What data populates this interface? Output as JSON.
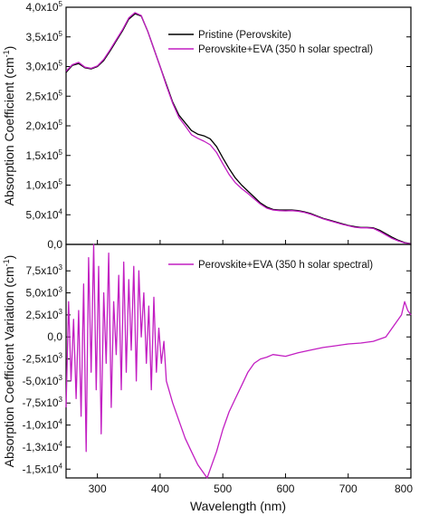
{
  "chart_data": [
    {
      "type": "line",
      "ylabel": "Absorption Coefficient (cm",
      "ylabel_sup": "-1",
      "ylabel_tail": ")",
      "xlim": [
        250,
        800
      ],
      "ylim": [
        0,
        400000
      ],
      "yticks": [
        {
          "value": 0,
          "label": "0,0"
        },
        {
          "value": 50000,
          "label": "5,0x10",
          "exp": "4"
        },
        {
          "value": 100000,
          "label": "1,0x10",
          "exp": "5"
        },
        {
          "value": 150000,
          "label": "1,5x10",
          "exp": "5"
        },
        {
          "value": 200000,
          "label": "2,0x10",
          "exp": "5"
        },
        {
          "value": 250000,
          "label": "2,5x10",
          "exp": "5"
        },
        {
          "value": 300000,
          "label": "3,0x10",
          "exp": "5"
        },
        {
          "value": 350000,
          "label": "3,5x10",
          "exp": "5"
        },
        {
          "value": 400000,
          "label": "4,0x10",
          "exp": "5"
        }
      ],
      "legend_position": "top-right",
      "series": [
        {
          "name": "Pristine (Perovskite)",
          "color": "#000000",
          "x": [
            250,
            260,
            270,
            280,
            290,
            300,
            310,
            320,
            330,
            340,
            350,
            360,
            370,
            380,
            390,
            400,
            410,
            420,
            430,
            440,
            450,
            460,
            470,
            480,
            490,
            500,
            510,
            520,
            530,
            540,
            550,
            560,
            570,
            580,
            590,
            600,
            610,
            620,
            630,
            640,
            650,
            660,
            670,
            680,
            690,
            700,
            710,
            720,
            730,
            740,
            750,
            760,
            770,
            780,
            790,
            800
          ],
          "y": [
            290000,
            302000,
            305000,
            298000,
            296000,
            300000,
            310000,
            326000,
            343000,
            360000,
            380000,
            389000,
            385000,
            360000,
            330000,
            300000,
            270000,
            240000,
            218000,
            205000,
            192000,
            186000,
            183000,
            178000,
            165000,
            146000,
            128000,
            112000,
            100000,
            90000,
            80000,
            70000,
            63000,
            59000,
            58000,
            58000,
            58000,
            57000,
            55000,
            52000,
            48000,
            44000,
            41000,
            38000,
            35000,
            32000,
            30000,
            28500,
            28500,
            28000,
            24000,
            18000,
            12000,
            7000,
            3000,
            1000
          ]
        },
        {
          "name": "Perovskite+EVA (350 h solar spectral)",
          "color": "#c21ec2",
          "x": [
            250,
            260,
            270,
            280,
            290,
            300,
            310,
            320,
            330,
            340,
            350,
            360,
            370,
            380,
            390,
            400,
            410,
            420,
            430,
            440,
            450,
            460,
            470,
            480,
            490,
            500,
            510,
            520,
            530,
            540,
            550,
            560,
            570,
            580,
            590,
            600,
            610,
            620,
            630,
            640,
            650,
            660,
            670,
            680,
            690,
            700,
            710,
            720,
            730,
            740,
            750,
            760,
            770,
            780,
            790,
            800
          ],
          "y": [
            292000,
            303000,
            307000,
            299000,
            297000,
            301000,
            312000,
            328000,
            345000,
            362000,
            382000,
            391000,
            386000,
            360000,
            330000,
            300000,
            268000,
            238000,
            214000,
            200000,
            185000,
            179000,
            174000,
            168000,
            155000,
            136000,
            118000,
            104000,
            94000,
            86000,
            77000,
            68000,
            61000,
            58000,
            57000,
            56500,
            57000,
            56000,
            54000,
            51000,
            47000,
            43000,
            40000,
            37000,
            34000,
            31500,
            29000,
            28000,
            28000,
            27000,
            22000,
            16000,
            10000,
            6000,
            2500,
            800
          ]
        }
      ]
    },
    {
      "type": "line",
      "xlabel": "Wavelength (nm)",
      "ylabel": "Absorption Coefficient Variation (cm",
      "ylabel_sup": "-1",
      "ylabel_tail": ")",
      "xlim": [
        250,
        800
      ],
      "ylim": [
        -16000,
        10500
      ],
      "xticks": [
        {
          "value": 300,
          "label": "300"
        },
        {
          "value": 400,
          "label": "400"
        },
        {
          "value": 500,
          "label": "500"
        },
        {
          "value": 600,
          "label": "600"
        },
        {
          "value": 700,
          "label": "700"
        },
        {
          "value": 800,
          "label": "800"
        }
      ],
      "yticks": [
        {
          "value": 7500,
          "label": "7,5x10",
          "exp": "3"
        },
        {
          "value": 5000,
          "label": "5,0x10",
          "exp": "3"
        },
        {
          "value": 2500,
          "label": "2,5x10",
          "exp": "3"
        },
        {
          "value": 0,
          "label": "0,0"
        },
        {
          "value": -2500,
          "label": "-2,5x10",
          "exp": "3"
        },
        {
          "value": -5000,
          "label": "-5,0x10",
          "exp": "3"
        },
        {
          "value": -7500,
          "label": "-7,5x10",
          "exp": "3"
        },
        {
          "value": -10000,
          "label": "-1,0x10",
          "exp": "4"
        },
        {
          "value": -12500,
          "label": "-1,3x10",
          "exp": "4"
        },
        {
          "value": -15000,
          "label": "-1,5x10",
          "exp": "4"
        }
      ],
      "legend_position": "top-right",
      "series": [
        {
          "name": "Perovskite+EVA (350 h solar spectral)",
          "color": "#c21ec2",
          "x": [
            250,
            254,
            258,
            262,
            266,
            270,
            274,
            278,
            282,
            286,
            290,
            294,
            298,
            302,
            306,
            310,
            314,
            318,
            322,
            326,
            330,
            334,
            338,
            342,
            346,
            350,
            354,
            358,
            362,
            366,
            370,
            374,
            378,
            382,
            386,
            390,
            394,
            398,
            402,
            406,
            410,
            420,
            430,
            440,
            450,
            460,
            470,
            475,
            480,
            490,
            500,
            510,
            520,
            530,
            540,
            550,
            560,
            570,
            580,
            600,
            620,
            640,
            660,
            680,
            700,
            720,
            740,
            760,
            775,
            785,
            790,
            795,
            800
          ],
          "y": [
            -8000,
            4000,
            -5000,
            2000,
            -7000,
            3000,
            -9000,
            6000,
            -13000,
            9000,
            -4000,
            10500,
            -6000,
            8000,
            -11000,
            5000,
            -3000,
            9500,
            -8000,
            4000,
            -2000,
            7000,
            -6000,
            8500,
            -4000,
            6500,
            -1500,
            8000,
            -5000,
            7500,
            0,
            5000,
            -3000,
            3500,
            -6000,
            4500,
            -4000,
            1000,
            -3000,
            -500,
            -5000,
            -7500,
            -9500,
            -11500,
            -13000,
            -14500,
            -15500,
            -16000,
            -15000,
            -13000,
            -10500,
            -8500,
            -7000,
            -5500,
            -4000,
            -3000,
            -2500,
            -2300,
            -2000,
            -2200,
            -1800,
            -1500,
            -1200,
            -1000,
            -800,
            -700,
            -500,
            0,
            1500,
            2500,
            4000,
            3000,
            2500
          ]
        }
      ]
    }
  ]
}
